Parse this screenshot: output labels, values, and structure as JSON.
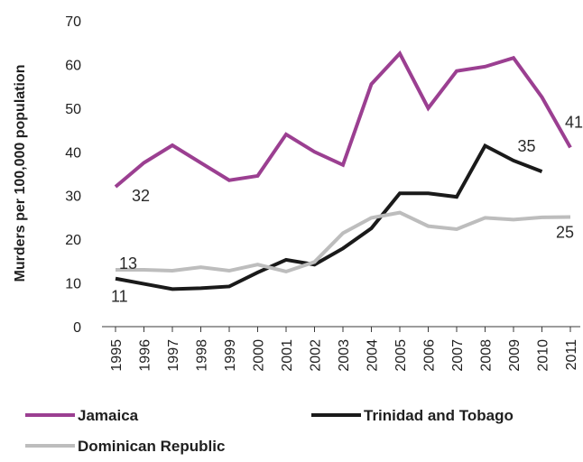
{
  "chart_data": {
    "type": "line",
    "ylabel": "Murders per 100,000 population",
    "ylim": [
      0,
      70
    ],
    "yticks": [
      0,
      10,
      20,
      30,
      40,
      50,
      60,
      70
    ],
    "grid": false,
    "legend_position": "bottom",
    "x": [
      "1995",
      "1996",
      "1997",
      "1998",
      "1999",
      "2000",
      "2001",
      "2002",
      "2003",
      "2004",
      "2005",
      "2006",
      "2007",
      "2008",
      "2009",
      "2010",
      "2011"
    ],
    "series": [
      {
        "name": "Jamaica",
        "color": "#9b3f91",
        "values": [
          32,
          37.5,
          41.5,
          37.5,
          33.5,
          34.5,
          44,
          40,
          37,
          55.5,
          62.5,
          50,
          58.5,
          59.5,
          61.5,
          52.5,
          41
        ]
      },
      {
        "name": "Trinidad and Tobago",
        "color": "#1a1a1a",
        "values": [
          11,
          9.8,
          8.6,
          8.8,
          9.2,
          12.4,
          15.3,
          14.2,
          17.9,
          22.5,
          30.5,
          30.5,
          29.7,
          41.4,
          38,
          35.5,
          null
        ]
      },
      {
        "name": "Dominican Republic",
        "color": "#bdbdbd",
        "values": [
          13,
          13,
          12.8,
          13.6,
          12.8,
          14.2,
          12.6,
          14.8,
          21.4,
          24.9,
          26.1,
          23,
          22.3,
          24.9,
          24.5,
          25,
          25.1
        ]
      }
    ],
    "annotations": [
      {
        "text": "32",
        "series": 0,
        "x_index": 0
      },
      {
        "text": "41",
        "series": 0,
        "x_index": 16
      },
      {
        "text": "35",
        "series": 1,
        "x_index": 15
      },
      {
        "text": "11",
        "series": 1,
        "x_index": 0
      },
      {
        "text": "13",
        "series": 2,
        "x_index": 0
      },
      {
        "text": "25",
        "series": 2,
        "x_index": 16
      }
    ]
  }
}
